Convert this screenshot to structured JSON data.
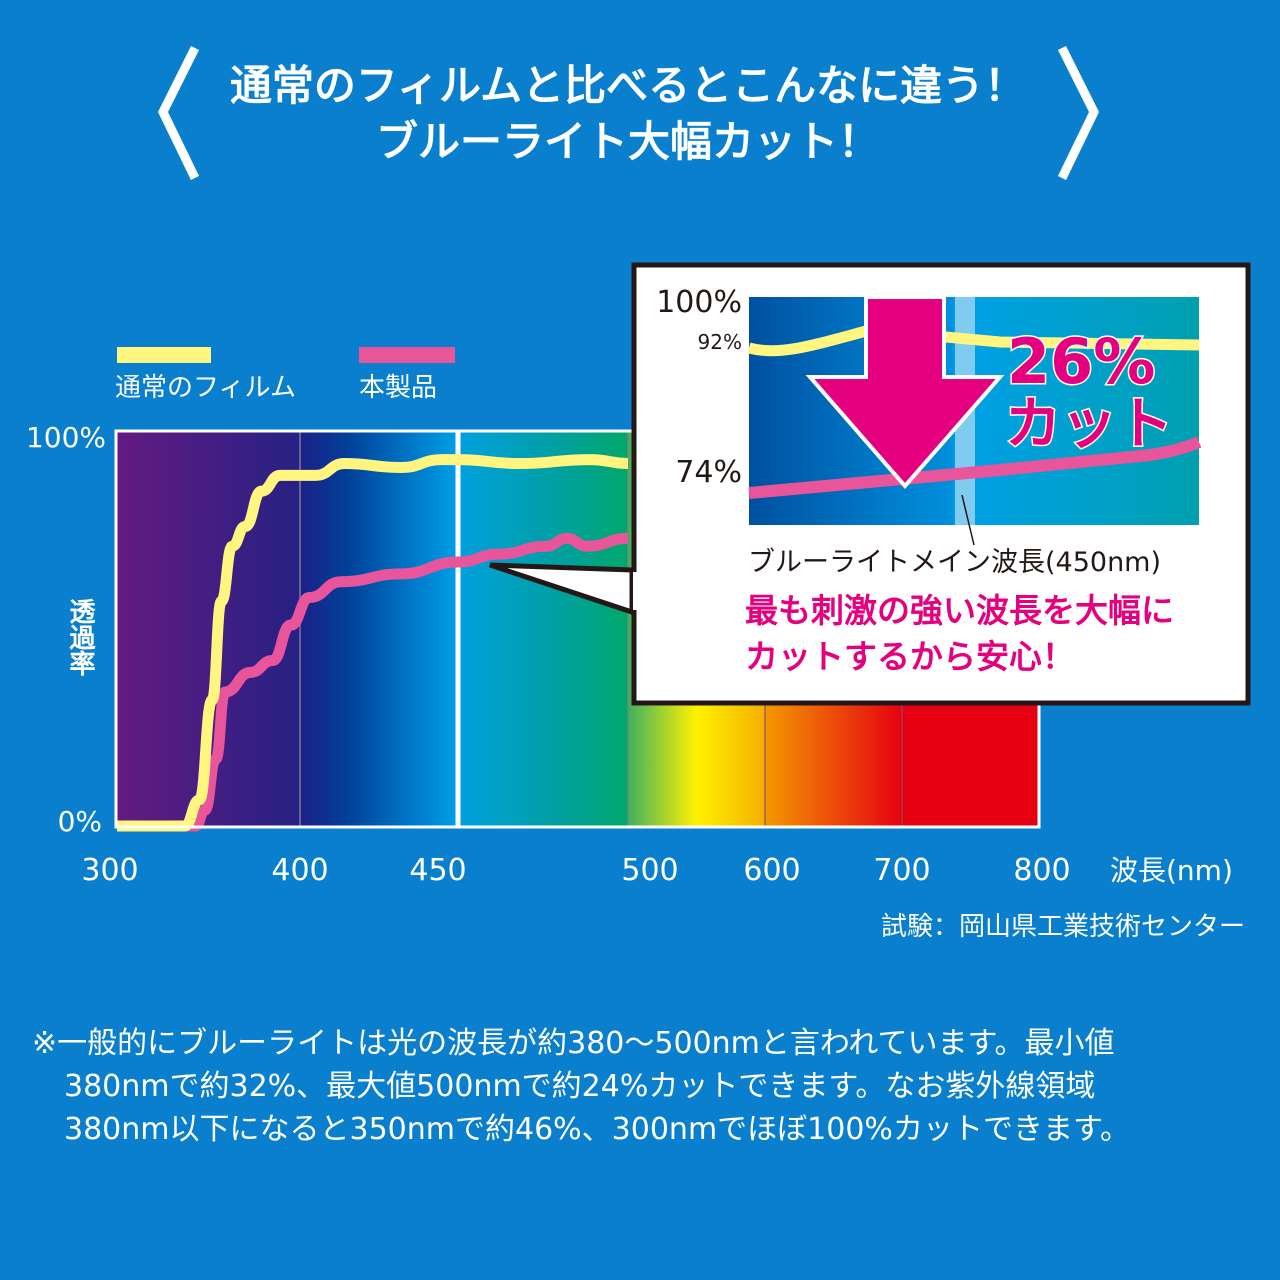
{
  "header": {
    "line1": "通常のフィルムと比べるとこんなに違う！",
    "line2": "ブルーライト大幅カット！"
  },
  "colors": {
    "background": "#0a7fcd",
    "normal_film": "#fff57f",
    "product": "#e8559a",
    "accent_magenta": "#e4007f"
  },
  "chart_data": {
    "type": "line",
    "xlabel": "波長(nm)",
    "ylabel": "透過率",
    "x_ticks": [
      "300",
      "400",
      "450",
      "500",
      "600",
      "700",
      "800"
    ],
    "y_ticks": [
      "0%",
      "100%"
    ],
    "ylim": [
      0,
      100
    ],
    "xlim": [
      300,
      800
    ],
    "x_scale": "non-uniform (piecewise, 300–400 / 400–450 / 450–500 / 500–600 / 600–700 / 700–800)",
    "highlight_line_x": 450,
    "legend": [
      "通常のフィルム",
      "本製品"
    ],
    "legend_position": "top-left",
    "series": [
      {
        "name": "通常のフィルム",
        "color": "#fff57f",
        "x": [
          300,
          337,
          345,
          352,
          357,
          363,
          370,
          379,
          389,
          400,
          405,
          414,
          432,
          445,
          450,
          468,
          489,
          500
        ],
        "y": [
          0,
          0,
          6.6,
          32,
          57,
          71,
          76,
          85,
          89,
          89,
          89,
          92,
          91,
          93,
          93,
          92,
          93,
          92
        ]
      },
      {
        "name": "本製品",
        "color": "#e8559a",
        "x": [
          300,
          343,
          348,
          354,
          359,
          373,
          385,
          395,
          403,
          413,
          432,
          450,
          462,
          476,
          482,
          488,
          500
        ],
        "y": [
          0,
          0,
          4,
          17,
          34,
          39,
          42,
          51,
          58,
          62,
          64,
          67,
          69,
          71,
          73,
          71,
          73
        ]
      }
    ],
    "source": "試験：岡山県工業技術センター"
  },
  "inset": {
    "label_100": "100%",
    "label_92": "92%",
    "label_74": "74%",
    "cut_percent": "26%",
    "cut_word": "カット",
    "caption": "ブルーライトメイン波長(450nm)",
    "message_line1": "最も刺激の強い波長を大幅に",
    "message_line2": "カットするから安心！"
  },
  "footnote": {
    "line1": "※一般的にブルーライトは光の波長が約380～500nmと言われています。最小値",
    "line2": "380nmで約32%、最大値500nmで約24%カットできます。なお紫外線領域",
    "line3": "380nm以下になると350nmで約46%、300nmでほぼ100%カットできます。"
  }
}
